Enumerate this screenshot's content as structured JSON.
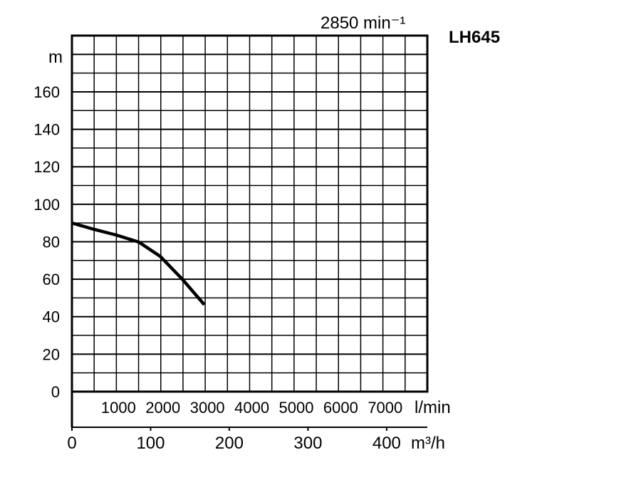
{
  "chart_data": {
    "type": "line",
    "title": "LH645",
    "subtitle": "2850 min⁻¹",
    "ylabel": "m",
    "xlabel": "m³/h",
    "x2label": "l/min",
    "xlim": [
      0,
      475
    ],
    "ylim": [
      0,
      190
    ],
    "grid": true,
    "yticks": [
      0,
      20,
      40,
      60,
      80,
      100,
      120,
      140,
      160
    ],
    "xticks": [
      0,
      100,
      200,
      300,
      400
    ],
    "x2ticks": [
      1000,
      2000,
      3000,
      4000,
      5000,
      6000,
      7000
    ],
    "series": [
      {
        "name": "LH645",
        "x": [
          0,
          29.5,
          59,
          89.5,
          118,
          147.6,
          177
        ],
        "y": [
          90,
          86.6,
          83.6,
          79.8,
          72.2,
          60,
          46.4
        ]
      }
    ]
  }
}
